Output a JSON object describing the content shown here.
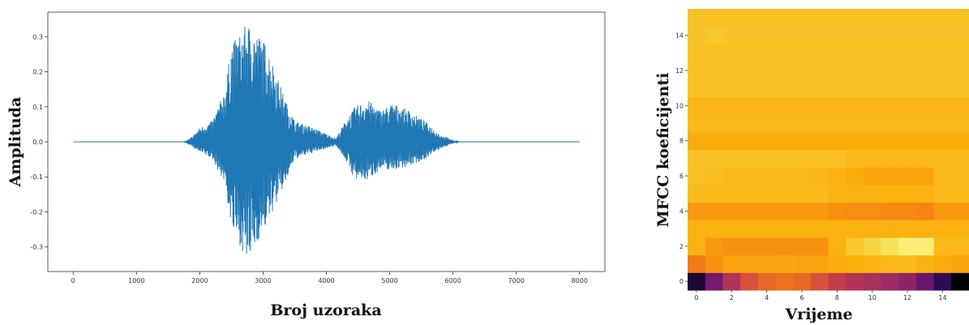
{
  "chart_data": [
    {
      "type": "line",
      "xlabel": "Broj uzoraka",
      "ylabel": "Amplituda",
      "xlim": [
        -400,
        8400
      ],
      "ylim": [
        -0.37,
        0.37
      ],
      "xticks": [
        0,
        1000,
        2000,
        3000,
        4000,
        5000,
        6000,
        7000,
        8000
      ],
      "yticks": [
        -0.3,
        -0.2,
        -0.1,
        0.0,
        0.1,
        0.2,
        0.3
      ],
      "grid": false,
      "series": [
        {
          "color": "#1f77b4",
          "envelope": [
            {
              "x": 0,
              "upper": 0.0,
              "lower": 0.0
            },
            {
              "x": 1750,
              "upper": 0.0,
              "lower": 0.0
            },
            {
              "x": 1850,
              "upper": 0.01,
              "lower": -0.01
            },
            {
              "x": 2000,
              "upper": 0.04,
              "lower": -0.03
            },
            {
              "x": 2200,
              "upper": 0.06,
              "lower": -0.05
            },
            {
              "x": 2400,
              "upper": 0.15,
              "lower": -0.12
            },
            {
              "x": 2500,
              "upper": 0.28,
              "lower": -0.25
            },
            {
              "x": 2650,
              "upper": 0.31,
              "lower": -0.3
            },
            {
              "x": 2750,
              "upper": 0.34,
              "lower": -0.35
            },
            {
              "x": 2900,
              "upper": 0.31,
              "lower": -0.29
            },
            {
              "x": 3050,
              "upper": 0.28,
              "lower": -0.24
            },
            {
              "x": 3200,
              "upper": 0.2,
              "lower": -0.18
            },
            {
              "x": 3350,
              "upper": 0.12,
              "lower": -0.12
            },
            {
              "x": 3500,
              "upper": 0.06,
              "lower": -0.05
            },
            {
              "x": 3800,
              "upper": 0.04,
              "lower": -0.03
            },
            {
              "x": 4150,
              "upper": 0.01,
              "lower": -0.01
            },
            {
              "x": 4300,
              "upper": 0.06,
              "lower": -0.05
            },
            {
              "x": 4450,
              "upper": 0.1,
              "lower": -0.11
            },
            {
              "x": 4650,
              "upper": 0.12,
              "lower": -0.11
            },
            {
              "x": 4850,
              "upper": 0.09,
              "lower": -0.08
            },
            {
              "x": 5050,
              "upper": 0.11,
              "lower": -0.08
            },
            {
              "x": 5300,
              "upper": 0.09,
              "lower": -0.07
            },
            {
              "x": 5550,
              "upper": 0.06,
              "lower": -0.05
            },
            {
              "x": 5800,
              "upper": 0.02,
              "lower": -0.02
            },
            {
              "x": 6000,
              "upper": 0.005,
              "lower": -0.005
            },
            {
              "x": 6100,
              "upper": 0.0,
              "lower": 0.0
            },
            {
              "x": 8000,
              "upper": 0.0,
              "lower": 0.0
            }
          ]
        }
      ]
    },
    {
      "type": "heatmap",
      "xlabel": "Vrijeme",
      "ylabel": "MFCC koeficijenti",
      "xlim": [
        -0.5,
        15.5
      ],
      "ylim": [
        -0.5,
        15.5
      ],
      "xticks": [
        0,
        2,
        4,
        6,
        8,
        10,
        12,
        14
      ],
      "yticks": [
        0,
        2,
        4,
        6,
        8,
        10,
        12,
        14
      ],
      "colormap": "inferno",
      "value_range": [
        0,
        1
      ],
      "rows": [
        [
          0.08,
          0.28,
          0.42,
          0.52,
          0.58,
          0.6,
          0.58,
          0.52,
          0.46,
          0.42,
          0.4,
          0.38,
          0.34,
          0.26,
          0.14,
          0.0
        ],
        [
          0.62,
          0.68,
          0.72,
          0.72,
          0.72,
          0.73,
          0.72,
          0.72,
          0.74,
          0.75,
          0.76,
          0.78,
          0.78,
          0.76,
          0.74,
          0.72
        ],
        [
          0.76,
          0.7,
          0.68,
          0.68,
          0.68,
          0.68,
          0.68,
          0.68,
          0.76,
          0.82,
          0.86,
          0.9,
          0.94,
          0.94,
          0.78,
          0.78
        ],
        [
          0.76,
          0.76,
          0.76,
          0.76,
          0.76,
          0.76,
          0.76,
          0.76,
          0.76,
          0.76,
          0.76,
          0.76,
          0.76,
          0.76,
          0.76,
          0.76
        ],
        [
          0.7,
          0.7,
          0.7,
          0.7,
          0.7,
          0.7,
          0.7,
          0.7,
          0.68,
          0.67,
          0.67,
          0.66,
          0.66,
          0.65,
          0.7,
          0.7
        ],
        [
          0.78,
          0.78,
          0.78,
          0.78,
          0.78,
          0.78,
          0.78,
          0.78,
          0.76,
          0.76,
          0.76,
          0.76,
          0.76,
          0.76,
          0.78,
          0.78
        ],
        [
          0.8,
          0.79,
          0.78,
          0.78,
          0.78,
          0.78,
          0.78,
          0.77,
          0.76,
          0.74,
          0.72,
          0.72,
          0.72,
          0.72,
          0.78,
          0.78
        ],
        [
          0.8,
          0.8,
          0.8,
          0.8,
          0.8,
          0.8,
          0.8,
          0.8,
          0.8,
          0.78,
          0.78,
          0.78,
          0.78,
          0.78,
          0.78,
          0.78
        ],
        [
          0.74,
          0.74,
          0.74,
          0.74,
          0.74,
          0.74,
          0.74,
          0.74,
          0.74,
          0.74,
          0.74,
          0.74,
          0.74,
          0.74,
          0.74,
          0.74
        ],
        [
          0.78,
          0.78,
          0.78,
          0.78,
          0.78,
          0.78,
          0.78,
          0.78,
          0.78,
          0.78,
          0.78,
          0.78,
          0.78,
          0.78,
          0.78,
          0.78
        ],
        [
          0.77,
          0.77,
          0.77,
          0.77,
          0.77,
          0.77,
          0.77,
          0.77,
          0.77,
          0.77,
          0.77,
          0.77,
          0.77,
          0.77,
          0.77,
          0.77
        ],
        [
          0.8,
          0.8,
          0.8,
          0.8,
          0.8,
          0.8,
          0.8,
          0.8,
          0.8,
          0.8,
          0.8,
          0.8,
          0.8,
          0.8,
          0.8,
          0.8
        ],
        [
          0.8,
          0.8,
          0.8,
          0.8,
          0.8,
          0.8,
          0.8,
          0.8,
          0.8,
          0.8,
          0.8,
          0.8,
          0.8,
          0.8,
          0.8,
          0.8
        ],
        [
          0.8,
          0.8,
          0.8,
          0.8,
          0.8,
          0.8,
          0.8,
          0.8,
          0.8,
          0.8,
          0.8,
          0.8,
          0.8,
          0.8,
          0.8,
          0.8
        ],
        [
          0.81,
          0.82,
          0.81,
          0.81,
          0.81,
          0.81,
          0.81,
          0.81,
          0.81,
          0.81,
          0.81,
          0.81,
          0.81,
          0.81,
          0.81,
          0.81
        ],
        [
          0.8,
          0.8,
          0.8,
          0.8,
          0.8,
          0.8,
          0.8,
          0.8,
          0.8,
          0.8,
          0.8,
          0.8,
          0.8,
          0.8,
          0.8,
          0.8
        ]
      ]
    }
  ]
}
